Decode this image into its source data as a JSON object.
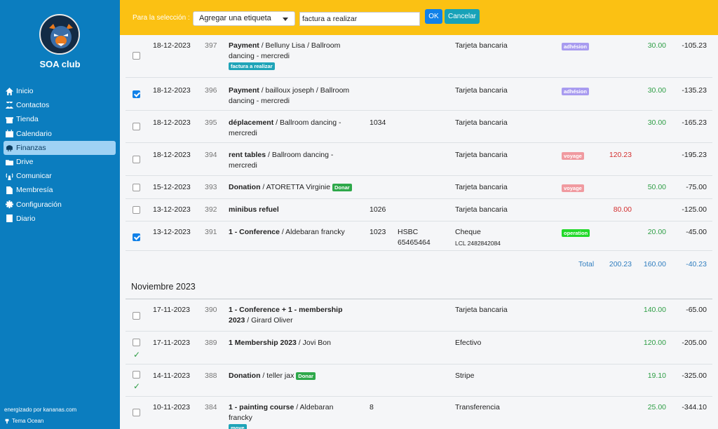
{
  "sidebar": {
    "club_name": "SOA club",
    "nav": [
      {
        "label": "Inicio",
        "icon": "home-icon"
      },
      {
        "label": "Contactos",
        "icon": "users-icon"
      },
      {
        "label": "Tienda",
        "icon": "store-icon"
      },
      {
        "label": "Calendario",
        "icon": "calendar-icon"
      },
      {
        "label": "Finanzas",
        "icon": "piggy-bank-icon",
        "active": true
      },
      {
        "label": "Drive",
        "icon": "folder-icon"
      },
      {
        "label": "Comunicar",
        "icon": "broadcast-icon"
      },
      {
        "label": "Membresía",
        "icon": "id-card-icon"
      },
      {
        "label": "Configuración",
        "icon": "gear-icon"
      },
      {
        "label": "Diario",
        "icon": "book-icon"
      }
    ],
    "powered_by": "energizado por kananas.com",
    "theme": "Tema Ocean"
  },
  "toolbar": {
    "selection_label": "Para la selección :",
    "action_select_value": "Agregar una etiqueta",
    "tag_input_value": "factura a realizar",
    "ok_label": "OK",
    "cancel_label": "Cancelar"
  },
  "december_rows": [
    {
      "date": "18-12-2023",
      "id": "397",
      "title": "Payment",
      "rest": " / Belluny Lisa / Ballroom dancing - mercredi",
      "badge": "factura a realizar",
      "ref": "",
      "bank": "",
      "bank2": "",
      "method": "Tarjeta bancaria",
      "method2": "",
      "tag": "adhésion",
      "expense": "",
      "income": "30.00",
      "balance": "-105.23",
      "checked": false
    },
    {
      "date": "18-12-2023",
      "id": "396",
      "title": "Payment",
      "rest": " / bailloux joseph / Ballroom dancing - mercredi",
      "badge": "",
      "ref": "",
      "bank": "",
      "bank2": "",
      "method": "Tarjeta bancaria",
      "method2": "",
      "tag": "adhésion",
      "expense": "",
      "income": "30.00",
      "balance": "-135.23",
      "checked": true
    },
    {
      "date": "18-12-2023",
      "id": "395",
      "title": "déplacement",
      "rest": " / Ballroom dancing - mercredi",
      "badge": "",
      "ref": "1034",
      "bank": "",
      "bank2": "",
      "method": "Tarjeta bancaria",
      "method2": "",
      "tag": "",
      "expense": "",
      "income": "30.00",
      "balance": "-165.23",
      "checked": false
    },
    {
      "date": "18-12-2023",
      "id": "394",
      "title": "rent tables",
      "rest": " / Ballroom dancing - mercredi",
      "badge": "",
      "ref": "",
      "bank": "",
      "bank2": "",
      "method": "Tarjeta bancaria",
      "method2": "",
      "tag": "voyage",
      "expense": "120.23",
      "income": "",
      "balance": "-195.23",
      "checked": false
    },
    {
      "date": "15-12-2023",
      "id": "393",
      "title": "Donation",
      "rest": " / ATORETTA Virginie",
      "badge": "Donar",
      "ref": "",
      "bank": "",
      "bank2": "",
      "method": "Tarjeta bancaria",
      "method2": "",
      "tag": "voyage",
      "expense": "",
      "income": "50.00",
      "balance": "-75.00",
      "checked": false
    },
    {
      "date": "13-12-2023",
      "id": "392",
      "title": "minibus refuel",
      "rest": "",
      "badge": "",
      "ref": "1026",
      "bank": "",
      "bank2": "",
      "method": "Tarjeta bancaria",
      "method2": "",
      "tag": "",
      "expense": "80.00",
      "income": "",
      "balance": "-125.00",
      "checked": false
    },
    {
      "date": "13-12-2023",
      "id": "391",
      "title": "1 - Conference",
      "rest": " / Aldebaran francky",
      "badge": "",
      "ref": "1023",
      "bank": "HSBC",
      "bank2": "65465464",
      "method": "Cheque",
      "method2": "LCL 2482842084",
      "tag": "operation",
      "expense": "",
      "income": "20.00",
      "balance": "-45.00",
      "checked": true
    }
  ],
  "totals": {
    "label": "Total",
    "expense": "200.23",
    "income": "160.00",
    "balance": "-40.23"
  },
  "month_heading": "Noviembre 2023",
  "november_rows": [
    {
      "date": "17-11-2023",
      "id": "390",
      "title": "1 - Conference + 1 - membership 2023",
      "rest": " / Girard Oliver",
      "badge": "",
      "ref": "",
      "method": "Tarjeta bancaria",
      "income": "140.00",
      "balance": "-65.00",
      "reconciled": false
    },
    {
      "date": "17-11-2023",
      "id": "389",
      "title": "1 Membership 2023",
      "rest": " / Jovi Bon",
      "badge": "",
      "ref": "",
      "method": "Efectivo",
      "income": "120.00",
      "balance": "-205.00",
      "reconciled": true
    },
    {
      "date": "14-11-2023",
      "id": "388",
      "title": "Donation",
      "rest": " / teller jax",
      "badge": "Donar",
      "ref": "",
      "method": "Stripe",
      "income": "19.10",
      "balance": "-325.00",
      "reconciled": true
    },
    {
      "date": "10-11-2023",
      "id": "384",
      "title": "1 - painting course",
      "rest": " / Aldebaran francky",
      "badge": "move",
      "ref": "8",
      "method": "Transferencia",
      "income": "25.00",
      "balance": "-344.10",
      "reconciled": false
    }
  ],
  "colors": {
    "sidebar": "#0b7dbf",
    "topbar": "#fbc113",
    "income": "#2e9e45",
    "expense": "#d32f2f",
    "primary": "#1181e8"
  }
}
